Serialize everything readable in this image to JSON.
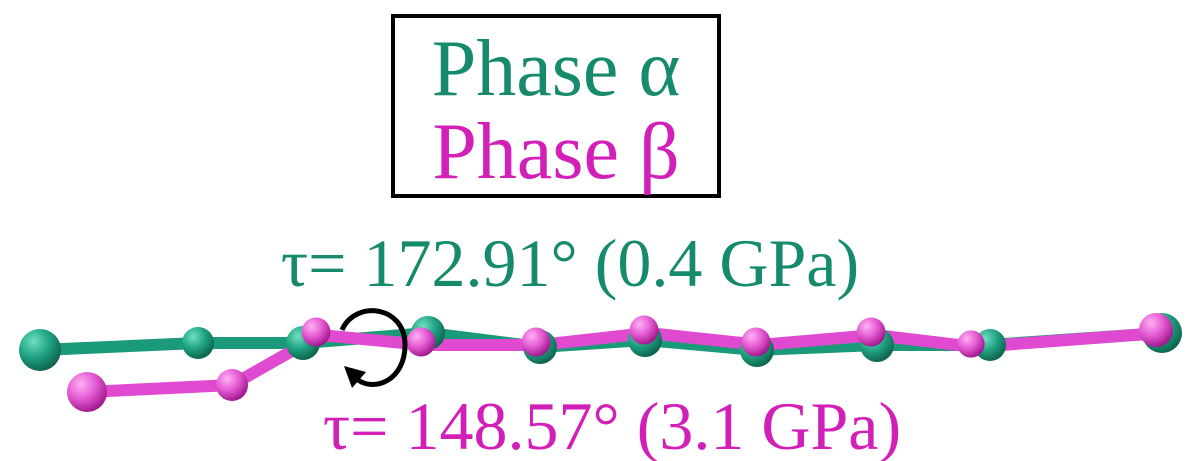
{
  "legend": {
    "items": [
      "Phase α",
      "Phase β"
    ]
  },
  "annotations": [
    "τ= 172.91° (0.4 GPa)",
    "τ= 148.57° (3.1 GPa)"
  ]
}
